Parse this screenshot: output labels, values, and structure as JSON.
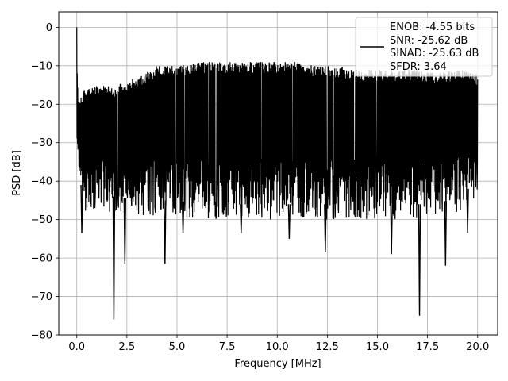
{
  "chart_data": {
    "type": "line",
    "title": "",
    "xlabel": "Frequency [MHz]",
    "ylabel": "PSD [dB]",
    "xlim": [
      -0.9,
      21.0
    ],
    "ylim": [
      -80,
      4
    ],
    "xticks": [
      0.0,
      2.5,
      5.0,
      7.5,
      10.0,
      12.5,
      15.0,
      17.5,
      20.0
    ],
    "xtick_labels": [
      "0.0",
      "2.5",
      "5.0",
      "7.5",
      "10.0",
      "12.5",
      "15.0",
      "17.5",
      "20.0"
    ],
    "yticks": [
      0,
      -10,
      -20,
      -30,
      -40,
      -50,
      -60,
      -70,
      -80
    ],
    "ytick_labels": [
      "0",
      "−10",
      "−20",
      "−30",
      "−40",
      "−50",
      "−60",
      "−70",
      "−80"
    ],
    "grid": true,
    "legend_position": "top-right",
    "series": [
      {
        "name": "",
        "color": "#000000",
        "x_range": [
          0.0,
          20.0
        ],
        "peak": {
          "x": 0.0,
          "y": 0.0
        },
        "upper_envelope": [
          [
            0.0,
            -18
          ],
          [
            0.5,
            -16
          ],
          [
            1.0,
            -15
          ],
          [
            2.0,
            -15
          ],
          [
            3.0,
            -13
          ],
          [
            4.0,
            -10
          ],
          [
            5.0,
            -10
          ],
          [
            6.0,
            -9
          ],
          [
            7.0,
            -9
          ],
          [
            8.0,
            -9
          ],
          [
            9.0,
            -9
          ],
          [
            10.0,
            -9
          ],
          [
            11.0,
            -9
          ],
          [
            12.0,
            -10
          ],
          [
            13.0,
            -10
          ],
          [
            14.0,
            -11
          ],
          [
            15.0,
            -11
          ],
          [
            16.0,
            -11
          ],
          [
            17.0,
            -11
          ],
          [
            18.0,
            -12
          ],
          [
            19.0,
            -11
          ],
          [
            20.0,
            -12
          ]
        ],
        "lower_envelope": [
          [
            0.0,
            -35
          ],
          [
            0.5,
            -47
          ],
          [
            1.0,
            -44
          ],
          [
            2.0,
            -44
          ],
          [
            3.0,
            -45
          ],
          [
            4.0,
            -45
          ],
          [
            5.0,
            -45
          ],
          [
            6.0,
            -46
          ],
          [
            7.0,
            -46
          ],
          [
            8.0,
            -46
          ],
          [
            9.0,
            -46
          ],
          [
            10.0,
            -46
          ],
          [
            11.0,
            -46
          ],
          [
            12.0,
            -46
          ],
          [
            13.0,
            -46
          ],
          [
            14.0,
            -46
          ],
          [
            15.0,
            -46
          ],
          [
            16.0,
            -46
          ],
          [
            17.0,
            -46
          ],
          [
            18.0,
            -46
          ],
          [
            19.0,
            -44
          ],
          [
            20.0,
            -40
          ]
        ],
        "dips": [
          [
            0.25,
            -53.5
          ],
          [
            1.85,
            -76
          ],
          [
            2.4,
            -61.5
          ],
          [
            4.4,
            -61.5
          ],
          [
            5.3,
            -53.5
          ],
          [
            8.2,
            -53.5
          ],
          [
            10.6,
            -55
          ],
          [
            12.4,
            -58.5
          ],
          [
            15.7,
            -59
          ],
          [
            17.1,
            -75
          ],
          [
            18.4,
            -62
          ],
          [
            19.5,
            -53.5
          ]
        ]
      }
    ],
    "legend_entries": [
      "ENOB: -4.55 bits",
      "SNR: -25.62 dB",
      "SINAD: -25.63 dB",
      "SFDR: 3.64"
    ]
  }
}
